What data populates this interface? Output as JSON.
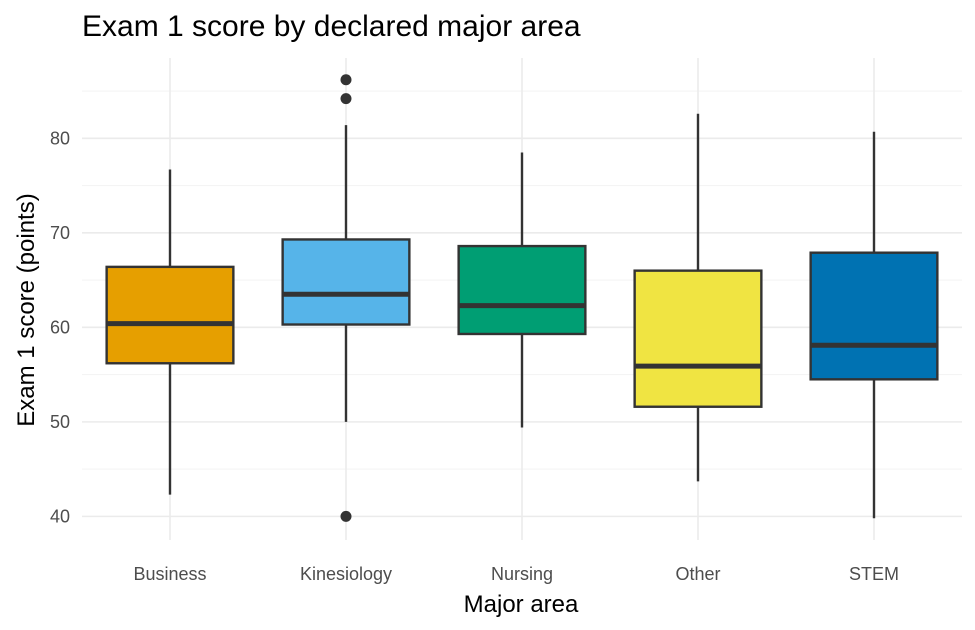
{
  "chart_data": {
    "type": "box",
    "title": "Exam 1 score by declared major area",
    "xlabel": "Major area",
    "ylabel": "Exam 1 score (points)",
    "ylim": [
      37.5,
      88.5
    ],
    "yticks": [
      40,
      50,
      60,
      70,
      80
    ],
    "grid": true,
    "legend": "none",
    "categories": [
      "Business",
      "Kinesiology",
      "Nursing",
      "Other",
      "STEM"
    ],
    "boxes": [
      {
        "category": "Business",
        "color": "#E69F00",
        "whisker_low": 42.3,
        "q1": 56.2,
        "median": 60.4,
        "q3": 66.4,
        "whisker_high": 76.7,
        "outliers": []
      },
      {
        "category": "Kinesiology",
        "color": "#56B4E9",
        "whisker_low": 50.0,
        "q1": 60.3,
        "median": 63.5,
        "q3": 69.3,
        "whisker_high": 81.4,
        "outliers": [
          40.0,
          84.2,
          86.2
        ]
      },
      {
        "category": "Nursing",
        "color": "#009E73",
        "whisker_low": 49.4,
        "q1": 59.3,
        "median": 62.3,
        "q3": 68.6,
        "whisker_high": 78.5,
        "outliers": []
      },
      {
        "category": "Other",
        "color": "#F0E442",
        "whisker_low": 43.7,
        "q1": 51.6,
        "median": 55.9,
        "q3": 66.0,
        "whisker_high": 82.6,
        "outliers": []
      },
      {
        "category": "STEM",
        "color": "#0072B2",
        "whisker_low": 39.8,
        "q1": 54.5,
        "median": 58.1,
        "q3": 67.9,
        "whisker_high": 80.7,
        "outliers": []
      }
    ]
  }
}
